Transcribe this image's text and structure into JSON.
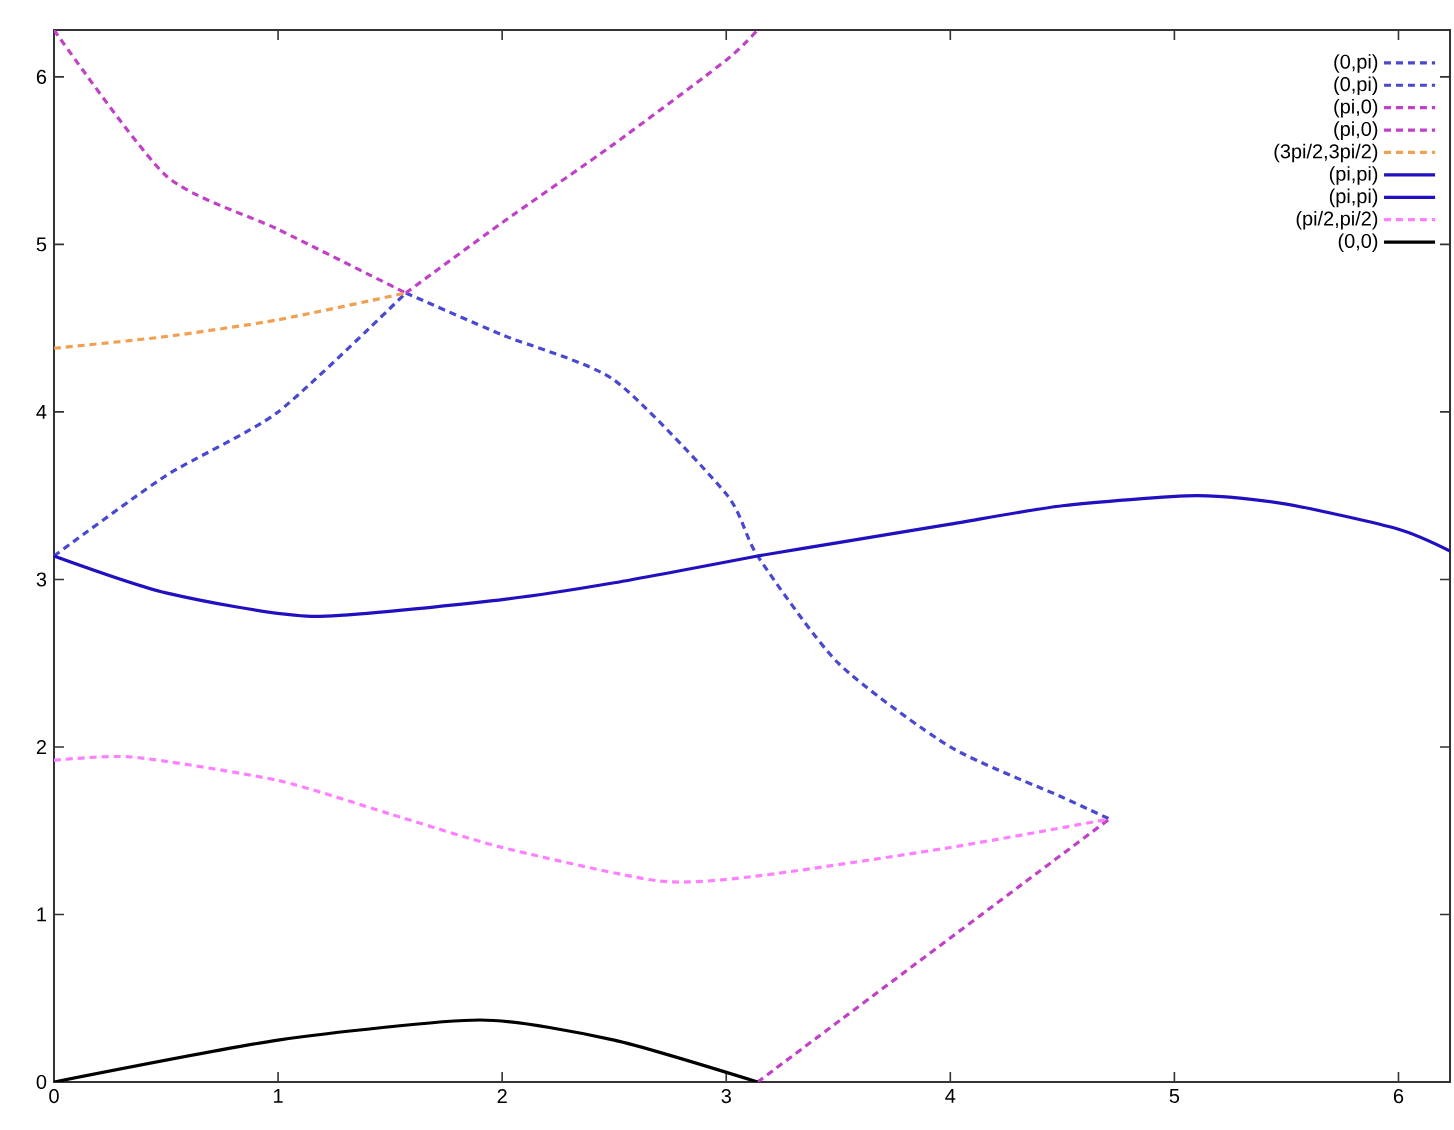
{
  "chart_data": {
    "type": "line",
    "xlim": [
      0,
      6.23
    ],
    "ylim": [
      0,
      6.28
    ],
    "xticks": [
      0,
      1,
      2,
      3,
      4,
      5,
      6
    ],
    "yticks": [
      0,
      1,
      2,
      3,
      4,
      5,
      6
    ],
    "grid": false,
    "legend": "top right",
    "marker": "none",
    "series": [
      {
        "name": "(0,pi)",
        "color": "#4848d0",
        "line_style": "dashed",
        "x": [
          0,
          0.5,
          1,
          1.57
        ],
        "values": [
          3.14,
          3.62,
          4.0,
          4.71
        ]
      },
      {
        "name": "(0,pi)",
        "color": "#4848d0",
        "line_style": "dashed",
        "x": [
          1.57,
          2,
          2.5,
          3,
          3.14,
          3.5,
          4,
          4.5,
          4.71
        ],
        "values": [
          4.71,
          4.46,
          4.19,
          3.51,
          3.14,
          2.5,
          2.0,
          1.7,
          1.57
        ]
      },
      {
        "name": "(pi,0)",
        "color": "#c040c8",
        "line_style": "dashed",
        "x": [
          0,
          0.5,
          1,
          1.57
        ],
        "values": [
          6.28,
          5.41,
          5.09,
          4.71
        ]
      },
      {
        "name": "(pi,0)",
        "color": "#c040c8",
        "line_style": "dashed",
        "x": [
          1.57,
          2,
          2.5,
          3,
          3.14,
          null,
          3.14,
          4.71
        ],
        "values": [
          4.71,
          5.13,
          5.6,
          6.1,
          6.28,
          null,
          0,
          1.57
        ]
      },
      {
        "name": "(3pi/2,3pi/2)",
        "color": "#f0a050",
        "line_style": "dashed",
        "x": [
          0,
          0.5,
          1,
          1.57
        ],
        "values": [
          4.38,
          4.45,
          4.55,
          4.71
        ]
      },
      {
        "name": "(pi,pi)",
        "color": "#2010c0",
        "line_style": "solid",
        "x": [
          0,
          0.5,
          1.15,
          2,
          2.5,
          3.14
        ],
        "values": [
          3.14,
          2.92,
          2.78,
          2.88,
          2.98,
          3.14
        ]
      },
      {
        "name": "(pi,pi)",
        "color": "#2010c0",
        "line_style": "solid",
        "x": [
          3.14,
          3.5,
          4,
          4.5,
          5.1,
          5.5,
          6,
          6.23
        ],
        "values": [
          3.14,
          3.22,
          3.33,
          3.44,
          3.5,
          3.45,
          3.3,
          3.17
        ]
      },
      {
        "name": "(pi/2,pi/2)",
        "color": "#ff80ff",
        "line_style": "dashed",
        "x": [
          0,
          0.35,
          1,
          1.5,
          2,
          2.7,
          3.14,
          4,
          4.71
        ],
        "values": [
          1.92,
          1.94,
          1.8,
          1.6,
          1.4,
          1.2,
          1.23,
          1.4,
          1.57
        ]
      },
      {
        "name": "(0,0)",
        "color": "#000000",
        "line_style": "solid",
        "x": [
          0,
          1,
          1.9,
          2.5,
          3.14
        ],
        "values": [
          0,
          0.25,
          0.37,
          0.25,
          0
        ]
      }
    ]
  }
}
